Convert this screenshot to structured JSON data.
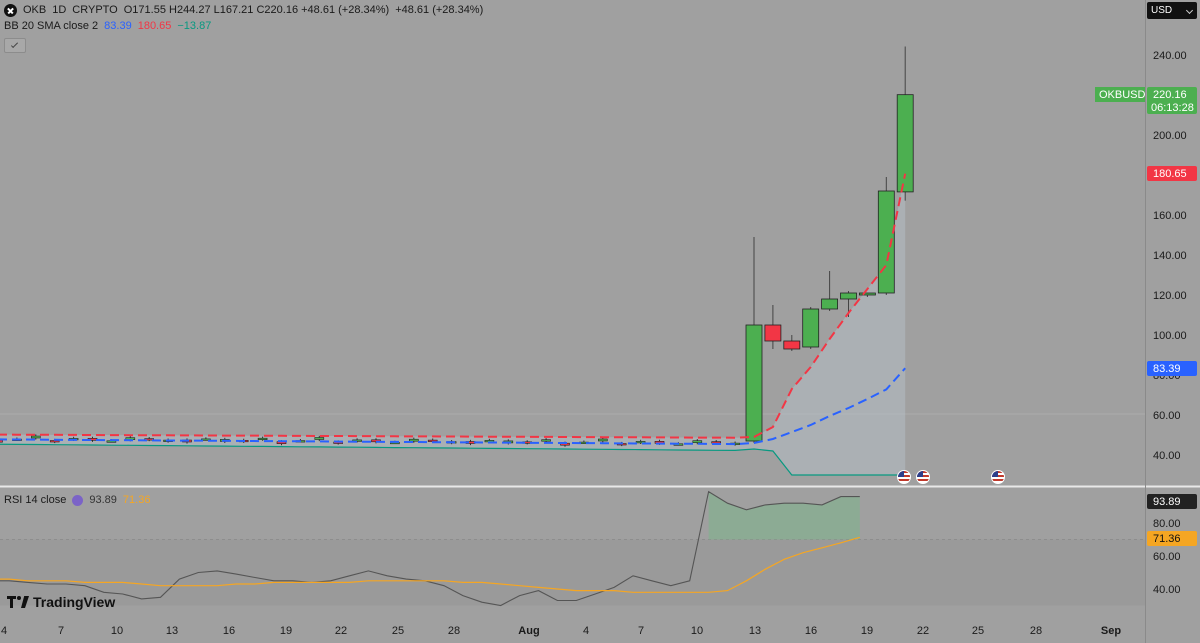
{
  "header": {
    "symbol": "OKB",
    "interval": "1D",
    "exchange": "CRYPTO",
    "ohlc": "O171.55 H244.27 L167.21 C220.16 +48.61 (+28.34%)",
    "quote_change": "+48.61 (+28.34%)",
    "currency": "USD"
  },
  "bb_legend": {
    "label": "BB 20 SMA close 2",
    "basis": "83.39",
    "upper": "180.65",
    "lower": "−13.87"
  },
  "rsi_legend": {
    "label": "RSI 14 close",
    "rsi": "93.89",
    "ma": "71.36"
  },
  "price_labels": {
    "symbol_tag": "OKBUSD",
    "last": "220.16",
    "countdown": "06:13:28",
    "upper_band": "180.65",
    "basis": "83.39",
    "rsi": "93.89",
    "rsi_ma": "71.36"
  },
  "branding": "TradingView",
  "colors": {
    "up": "#4caf50",
    "down": "#f23645",
    "basis": "#2962ff",
    "upper": "#f23645",
    "lower": "#089981",
    "rsi": "#7e7e7e",
    "rsi_ma": "#f5a623"
  },
  "chart_data": {
    "type": "candlestick",
    "price_axis": {
      "ticks": [
        40,
        60,
        80,
        100,
        120,
        140,
        160,
        180,
        200,
        220,
        240
      ],
      "min": 30,
      "max": 250
    },
    "rsi_axis": {
      "ticks": [
        40,
        60,
        80
      ],
      "min": 30,
      "max": 100,
      "overbought": 70
    },
    "x_ticks": [
      "4",
      "7",
      "10",
      "13",
      "16",
      "19",
      "22",
      "25",
      "28",
      "Aug",
      "4",
      "7",
      "10",
      "13",
      "16",
      "19",
      "22",
      "25",
      "28",
      "Sep"
    ],
    "candles_recent": [
      {
        "date": "Aug 13",
        "o": 47,
        "h": 149,
        "l": 46,
        "c": 105
      },
      {
        "date": "Aug 14",
        "o": 105,
        "h": 115,
        "l": 93,
        "c": 97
      },
      {
        "date": "Aug 15",
        "o": 97,
        "h": 100,
        "l": 92,
        "c": 93
      },
      {
        "date": "Aug 16",
        "o": 94,
        "h": 114,
        "l": 93,
        "c": 113
      },
      {
        "date": "Aug 17",
        "o": 113,
        "h": 132,
        "l": 112,
        "c": 118
      },
      {
        "date": "Aug 18",
        "o": 118,
        "h": 122,
        "l": 109,
        "c": 121
      },
      {
        "date": "Aug 19",
        "o": 120,
        "h": 121,
        "l": 119,
        "c": 121
      },
      {
        "date": "Aug 20",
        "o": 121,
        "h": 179,
        "l": 120,
        "c": 172
      },
      {
        "date": "Aug 21",
        "o": 171.55,
        "h": 244.27,
        "l": 167.21,
        "c": 220.16
      }
    ],
    "candles_flat_range": {
      "from": "Jul 4",
      "to": "Aug 12",
      "approx_price": 48
    },
    "bollinger": {
      "period": 20,
      "basis_last": 83.39,
      "upper_last": 180.65,
      "lower_last": -13.87
    },
    "rsi": {
      "last": 93.89,
      "ma_last": 71.36
    }
  }
}
